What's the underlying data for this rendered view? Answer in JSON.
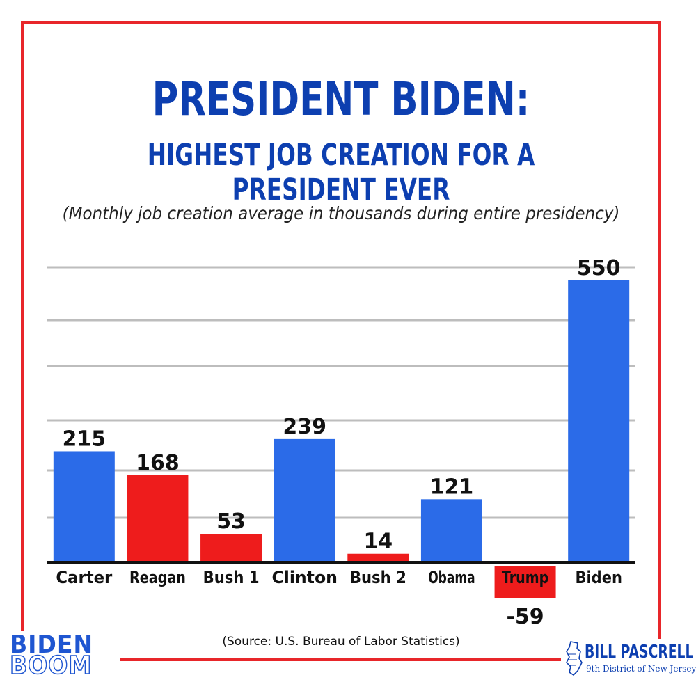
{
  "header": {
    "title": "PRESIDENT BIDEN:",
    "subtitle": "HIGHEST JOB CREATION FOR A PRESIDENT EVER",
    "note": "(Monthly job creation average in thousands during entire presidency)"
  },
  "footer": {
    "source": "(Source: U.S. Bureau of Labor Statistics)",
    "logo_left_line1": "BIDEN",
    "logo_left_line2": "BOOM",
    "logo_right_name": "BILL PASCRELL",
    "logo_right_district": "9th District of New Jersey"
  },
  "colors": {
    "frame": "#e8262a",
    "democrat": "#2b6be8",
    "republican": "#ee1c1c",
    "title": "#0d3fb0"
  },
  "chart_data": {
    "type": "bar",
    "title": "Monthly job creation average in thousands during entire presidency",
    "categories": [
      "Carter",
      "Reagan",
      "Bush 1",
      "Clinton",
      "Bush 2",
      "Obama",
      "Trump",
      "Biden"
    ],
    "values": [
      215,
      168,
      53,
      239,
      14,
      121,
      -59,
      550
    ],
    "party": [
      "D",
      "R",
      "R",
      "D",
      "R",
      "D",
      "R",
      "D"
    ],
    "data_labels": [
      "215",
      "168",
      "53",
      "239",
      "14",
      "121",
      "-59",
      "550"
    ],
    "ylim": [
      -59,
      580
    ],
    "grid": true,
    "xlabel": "",
    "ylabel": ""
  }
}
